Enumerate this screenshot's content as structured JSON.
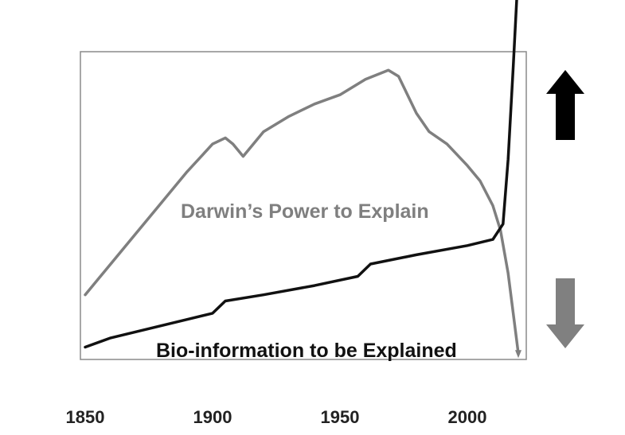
{
  "chart_data": {
    "type": "line",
    "title": "",
    "xlabel": "",
    "ylabel": "",
    "xlim": [
      1850,
      2020
    ],
    "ylim": [
      0,
      100
    ],
    "x_ticks": [
      1850,
      1900,
      1950,
      2000
    ],
    "grid": false,
    "legend": "none",
    "series": [
      {
        "name": "Darwin’s Power to Explain",
        "color": "#7f7f7f",
        "points": [
          [
            1850,
            21
          ],
          [
            1860,
            31
          ],
          [
            1870,
            41
          ],
          [
            1880,
            51
          ],
          [
            1890,
            61
          ],
          [
            1900,
            70
          ],
          [
            1905,
            72
          ],
          [
            1908,
            70
          ],
          [
            1912,
            66
          ],
          [
            1920,
            74
          ],
          [
            1930,
            79
          ],
          [
            1940,
            83
          ],
          [
            1950,
            86
          ],
          [
            1960,
            91
          ],
          [
            1969,
            94
          ],
          [
            1973,
            92
          ],
          [
            1980,
            80
          ],
          [
            1985,
            74
          ],
          [
            1992,
            70
          ],
          [
            2000,
            63
          ],
          [
            2005,
            58
          ],
          [
            2010,
            50
          ],
          [
            2013,
            42
          ],
          [
            2016,
            28
          ],
          [
            2018,
            15
          ],
          [
            2020,
            2
          ]
        ],
        "end_arrow": "down"
      },
      {
        "name": "Bio-information to be Explained",
        "color": "#111111",
        "points": [
          [
            1850,
            4
          ],
          [
            1860,
            7
          ],
          [
            1870,
            9
          ],
          [
            1880,
            11
          ],
          [
            1890,
            13
          ],
          [
            1900,
            15
          ],
          [
            1905,
            19
          ],
          [
            1920,
            21
          ],
          [
            1940,
            24
          ],
          [
            1957,
            27
          ],
          [
            1962,
            31
          ],
          [
            1980,
            34
          ],
          [
            2000,
            37
          ],
          [
            2010,
            39
          ],
          [
            2014,
            44
          ],
          [
            2016,
            65
          ],
          [
            2018,
            95
          ],
          [
            2020,
            127
          ]
        ],
        "end_arrow": "up"
      }
    ],
    "side_arrows": [
      {
        "direction": "up",
        "color": "#000000"
      },
      {
        "direction": "down",
        "color": "#808080"
      }
    ]
  }
}
